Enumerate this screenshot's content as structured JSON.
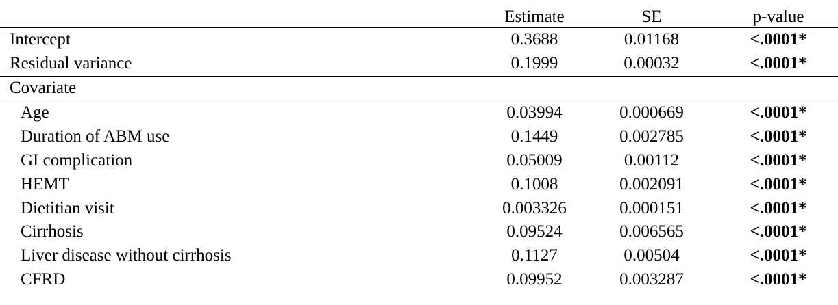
{
  "headers": {
    "label": "",
    "estimate": "Estimate",
    "se": "SE",
    "pvalue": "p-value"
  },
  "top_rows": [
    {
      "label": "Intercept",
      "estimate": "0.3688",
      "se": "0.01168",
      "pvalue": "<.0001*"
    },
    {
      "label": "Residual variance",
      "estimate": "0.1999",
      "se": "0.00032",
      "pvalue": "<.0001*"
    }
  ],
  "section_label": "Covariate",
  "covariate_rows": [
    {
      "label": "Age",
      "estimate": "0.03994",
      "se": "0.000669",
      "pvalue": "<.0001*"
    },
    {
      "label": "Duration of ABM use",
      "estimate": "0.1449",
      "se": "0.002785",
      "pvalue": "<.0001*"
    },
    {
      "label": "GI complication",
      "estimate": "0.05009",
      "se": "0.00112",
      "pvalue": "<.0001*"
    },
    {
      "label": "HEMT",
      "estimate": "0.1008",
      "se": "0.002091",
      "pvalue": "<.0001*"
    },
    {
      "label": "Dietitian visit",
      "estimate": "0.003326",
      "se": "0.000151",
      "pvalue": "<.0001*"
    },
    {
      "label": "Cirrhosis",
      "estimate": "0.09524",
      "se": "0.006565",
      "pvalue": "<.0001*"
    },
    {
      "label": "Liver disease without cirrhosis",
      "estimate": "0.1127",
      "se": "0.00504",
      "pvalue": "<.0001*"
    },
    {
      "label": "CFRD",
      "estimate": "0.09952",
      "se": "0.003287",
      "pvalue": "<.0001*"
    }
  ]
}
